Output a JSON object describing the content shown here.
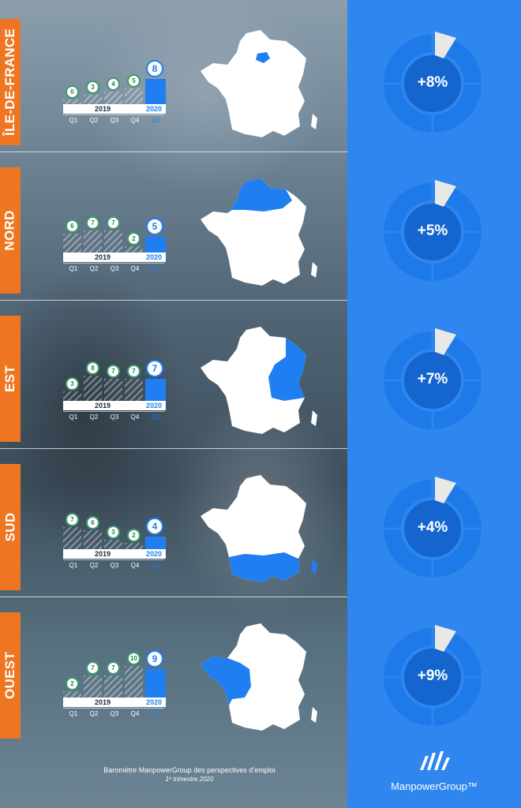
{
  "regions": [
    {
      "name": "ÎLE-DE-FRANCE",
      "y2019": [
        0,
        3,
        4,
        5
      ],
      "q1_2020": 8,
      "donut_label": "+8%"
    },
    {
      "name": "NORD",
      "y2019": [
        6,
        7,
        7,
        2
      ],
      "q1_2020": 5,
      "donut_label": "+5%"
    },
    {
      "name": "EST",
      "y2019": [
        3,
        8,
        7,
        7
      ],
      "q1_2020": 7,
      "donut_label": "+7%"
    },
    {
      "name": "SUD",
      "y2019": [
        7,
        6,
        3,
        2
      ],
      "q1_2020": 4,
      "donut_label": "+4%"
    },
    {
      "name": "OUEST",
      "y2019": [
        2,
        7,
        7,
        10
      ],
      "q1_2020": 9,
      "donut_label": "+9%"
    }
  ],
  "labels": {
    "year_2019": "2019",
    "year_2020": "2020",
    "quarters": [
      "Q1",
      "Q2",
      "Q3",
      "Q4",
      "Q1"
    ]
  },
  "footer": {
    "line1": "Baromètre ManpowerGroup des perspectives d’emploi",
    "line2": "1ᵉ trimestre 2020"
  },
  "brand": {
    "name": "ManpowerGroup™"
  },
  "colors": {
    "accent_blue": "#2f86ee",
    "tab_orange": "#ee7622",
    "dot_green": "#3b9b6a"
  }
}
